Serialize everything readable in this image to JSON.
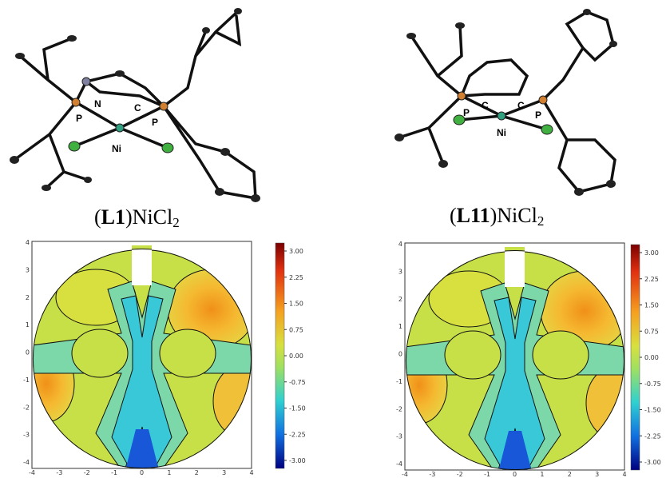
{
  "panels": [
    {
      "caption": {
        "open": "(",
        "ligand": "L1",
        "close": ")NiCl",
        "sub": "2"
      },
      "atoms": [
        "P",
        "N",
        "C",
        "P",
        "Ni"
      ],
      "colorbar": [
        "3.00",
        "2.25",
        "1.50",
        "0.75",
        "0.00",
        "-0.75",
        "-1.50",
        "-2.25",
        "-3.00"
      ],
      "xticks": [
        "-4",
        "-3",
        "-2",
        "-1",
        "0",
        "1",
        "2",
        "3",
        "4"
      ],
      "yticks": [
        "4",
        "3",
        "2",
        "1",
        "0",
        "-1",
        "-2",
        "-3",
        "-4"
      ]
    },
    {
      "caption": {
        "open": "(",
        "ligand": "L11",
        "close": ")NiCl",
        "sub": "2"
      },
      "atoms": [
        "P",
        "C",
        "C",
        "P",
        "Ni"
      ],
      "colorbar": [
        "3.00",
        "2.25",
        "1.50",
        "0.75",
        "0.00",
        "-0.75",
        "-1.50",
        "-2.25",
        "-3.00"
      ],
      "xticks": [
        "-4",
        "-3",
        "-2",
        "-1",
        "0",
        "1",
        "2",
        "3",
        "4"
      ],
      "yticks": [
        "4",
        "3",
        "2",
        "1",
        "0",
        "-1",
        "-2",
        "-3",
        "-4"
      ]
    }
  ]
}
